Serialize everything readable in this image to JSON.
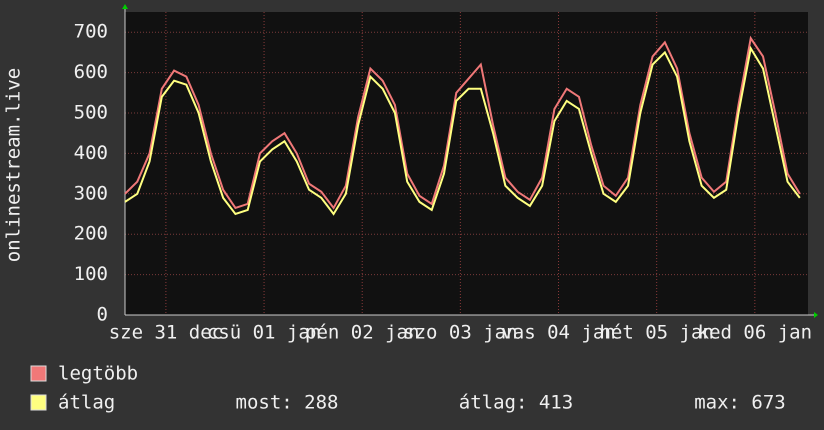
{
  "chart_data": {
    "type": "line",
    "y_label": "onlinestream.live",
    "x": [
      0,
      3,
      6,
      9,
      12,
      15,
      18,
      21,
      24,
      27,
      30,
      33,
      36,
      39,
      42,
      45,
      48,
      51,
      54,
      57,
      60,
      63,
      66,
      69,
      72,
      75,
      78,
      81,
      84,
      87,
      90,
      93,
      96,
      99,
      102,
      105,
      108,
      111,
      114,
      117,
      120,
      123,
      126,
      129,
      132,
      135,
      138,
      141,
      144,
      147,
      150,
      153,
      156,
      159,
      162,
      165
    ],
    "xlim": [
      0,
      167
    ],
    "xticks": [
      {
        "value": 10,
        "label": "sze 31 dec"
      },
      {
        "value": 34,
        "label": "csü 01 jan"
      },
      {
        "value": 58,
        "label": "pén 02 jan"
      },
      {
        "value": 82,
        "label": "szo 03 jan"
      },
      {
        "value": 106,
        "label": "vas 04 jan"
      },
      {
        "value": 130,
        "label": "hét 05 jan"
      },
      {
        "value": 154,
        "label": "ked 06 jan"
      }
    ],
    "ylim": [
      0,
      750
    ],
    "yticks": [
      0,
      100,
      200,
      300,
      400,
      500,
      600,
      700
    ],
    "grid": true,
    "series": [
      {
        "name": "legtöbb",
        "color": "#f07878",
        "values": [
          300,
          330,
          400,
          560,
          605,
          590,
          520,
          400,
          310,
          265,
          275,
          400,
          430,
          450,
          400,
          325,
          305,
          265,
          320,
          490,
          610,
          580,
          520,
          350,
          295,
          275,
          370,
          550,
          585,
          620,
          470,
          340,
          305,
          285,
          340,
          510,
          560,
          540,
          420,
          320,
          295,
          340,
          520,
          640,
          675,
          610,
          450,
          340,
          305,
          330,
          520,
          685,
          640,
          500,
          350,
          300
        ]
      },
      {
        "name": "átlag",
        "color": "#ffff80",
        "values": [
          280,
          300,
          380,
          540,
          580,
          570,
          500,
          380,
          290,
          250,
          260,
          380,
          410,
          430,
          380,
          310,
          290,
          250,
          300,
          470,
          590,
          560,
          500,
          330,
          280,
          260,
          350,
          530,
          560,
          560,
          450,
          320,
          290,
          270,
          320,
          480,
          530,
          510,
          400,
          300,
          280,
          320,
          500,
          620,
          650,
          590,
          430,
          320,
          290,
          310,
          500,
          660,
          610,
          470,
          330,
          290
        ]
      }
    ],
    "stats": [
      "most: 288",
      "átlag: 413",
      "max: 673"
    ]
  }
}
